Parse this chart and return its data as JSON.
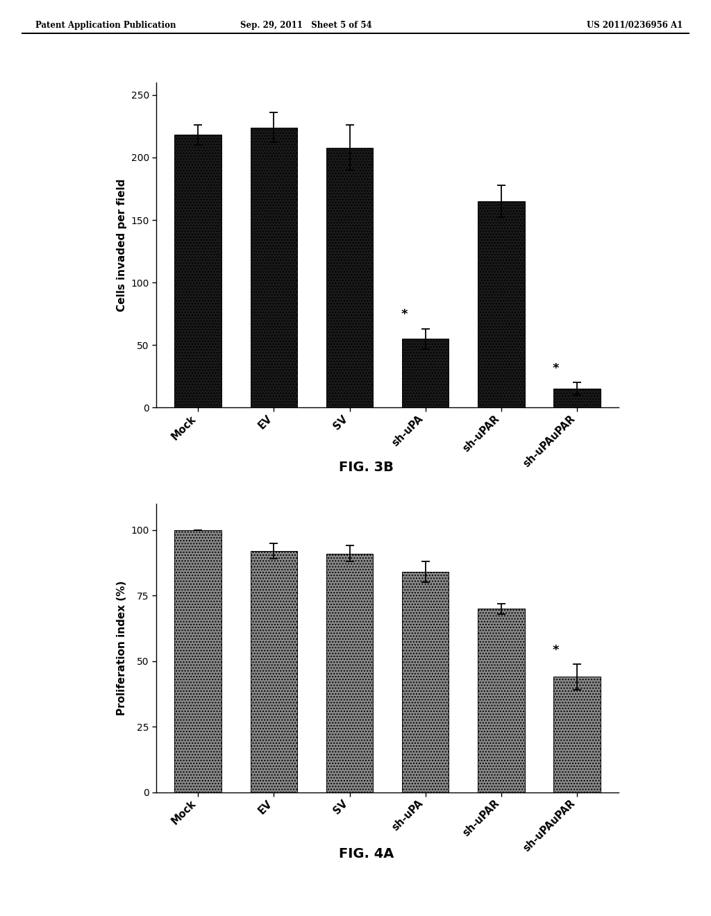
{
  "fig3b": {
    "categories": [
      "Mock",
      "EV",
      "SV",
      "sh-uPA",
      "sh-uPAR",
      "sh-uPAuPAR"
    ],
    "values": [
      218,
      224,
      208,
      55,
      165,
      15
    ],
    "errors": [
      8,
      12,
      18,
      8,
      13,
      5
    ],
    "ylabel": "Cells invaded per field",
    "ylim": [
      0,
      260
    ],
    "yticks": [
      0,
      50,
      100,
      150,
      200,
      250
    ],
    "bar_color": "#1a1a1a",
    "significant": [
      false,
      false,
      false,
      true,
      false,
      true
    ],
    "fig_label": "FIG. 3B"
  },
  "fig4a": {
    "categories": [
      "Mock",
      "EV",
      "SV",
      "sh-uPA",
      "sh-uPAR",
      "sh-uPAuPAR"
    ],
    "values": [
      100,
      92,
      91,
      84,
      70,
      44
    ],
    "errors": [
      0,
      3,
      3,
      4,
      2,
      5
    ],
    "ylabel": "Proliferation index (%)",
    "ylim": [
      0,
      110
    ],
    "yticks": [
      0,
      25,
      50,
      75,
      100
    ],
    "bar_color": "#888888",
    "significant": [
      false,
      false,
      false,
      false,
      false,
      true
    ],
    "fig_label": "FIG. 4A"
  },
  "header_left": "Patent Application Publication",
  "header_mid": "Sep. 29, 2011   Sheet 5 of 54",
  "header_right": "US 2011/0236956 A1",
  "background_color": "#ffffff",
  "text_color": "#000000"
}
